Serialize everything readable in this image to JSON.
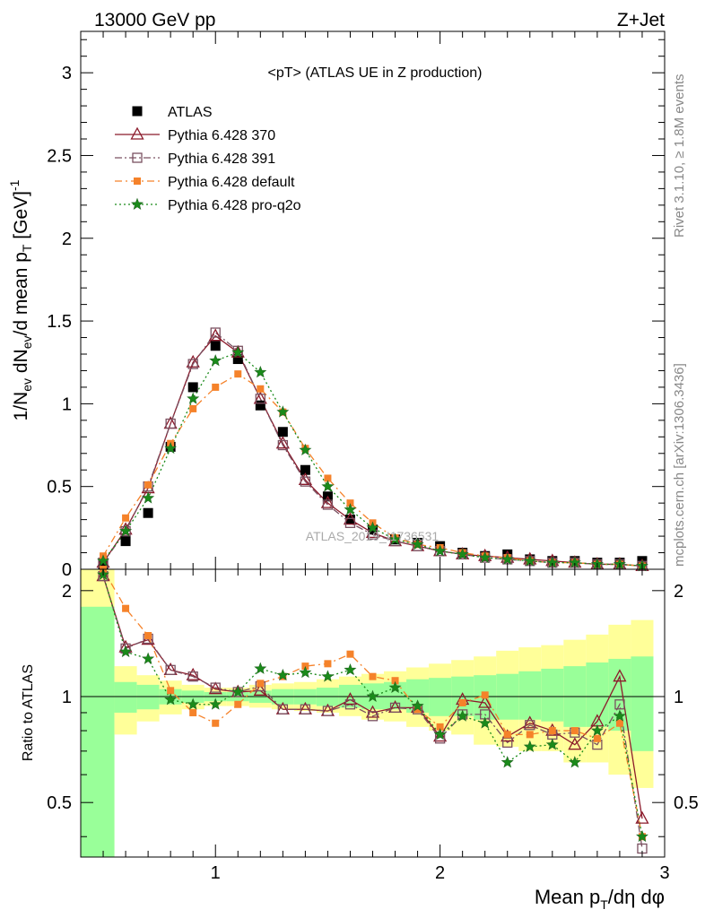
{
  "header": {
    "energy_label": "13000 GeV pp",
    "process_label": "Z+Jet"
  },
  "side_labels": {
    "rivet": "Rivet 3.1.10, ≥ 1.8M events",
    "mcplots": "mcplots.cern.ch [arXiv:1306.3436]"
  },
  "watermark": "ATLAS_2019_I1736531",
  "colors": {
    "data": "#000000",
    "p370": "#8b1a2b",
    "p391": "#7a5060",
    "pdefault": "#f5822a",
    "pq2o": "#1a8a1a",
    "band_inner": "#99ff99",
    "band_outer": "#ffff99"
  },
  "chart_data": [
    {
      "type": "scatter",
      "title": "<pT> (ATLAS UE in Z production)",
      "ylabel": "1/N_ev dN_ev/d mean p_T [GeV]^-1",
      "xlabel": "",
      "xlim": [
        0.4,
        3.0
      ],
      "ylim": [
        0,
        3.25
      ],
      "yticks": [
        0,
        0.5,
        1,
        1.5,
        2,
        2.5,
        3
      ],
      "legend_position": "top-left",
      "legend": [
        "ATLAS",
        "Pythia 6.428 370",
        "Pythia 6.428 391",
        "Pythia 6.428 default",
        "Pythia 6.428 pro-q2o"
      ],
      "x": [
        0.5,
        0.6,
        0.7,
        0.8,
        0.9,
        1.0,
        1.1,
        1.2,
        1.3,
        1.4,
        1.5,
        1.6,
        1.7,
        1.8,
        1.9,
        2.0,
        2.1,
        2.2,
        2.3,
        2.4,
        2.5,
        2.6,
        2.7,
        2.8,
        2.9
      ],
      "series": [
        {
          "name": "ATLAS",
          "values": [
            0.02,
            0.17,
            0.34,
            0.74,
            1.1,
            1.35,
            1.27,
            0.99,
            0.83,
            0.6,
            0.44,
            0.3,
            0.24,
            0.18,
            0.16,
            0.14,
            0.1,
            0.08,
            0.09,
            0.06,
            0.05,
            0.05,
            0.04,
            0.04,
            0.05
          ]
        },
        {
          "name": "Pythia 6.428 370",
          "values": [
            0.04,
            0.24,
            0.49,
            0.88,
            1.25,
            1.41,
            1.31,
            1.03,
            0.76,
            0.54,
            0.4,
            0.3,
            0.22,
            0.17,
            0.14,
            0.11,
            0.09,
            0.08,
            0.07,
            0.06,
            0.05,
            0.04,
            0.03,
            0.03,
            0.02
          ]
        },
        {
          "name": "Pythia 6.428 391",
          "values": [
            0.04,
            0.23,
            0.5,
            0.88,
            1.24,
            1.43,
            1.32,
            1.03,
            0.75,
            0.53,
            0.39,
            0.28,
            0.21,
            0.17,
            0.14,
            0.11,
            0.09,
            0.07,
            0.06,
            0.05,
            0.04,
            0.04,
            0.03,
            0.03,
            0.02
          ]
        },
        {
          "name": "Pythia 6.428 default",
          "values": [
            0.08,
            0.31,
            0.51,
            0.76,
            0.97,
            1.1,
            1.18,
            1.09,
            0.95,
            0.73,
            0.55,
            0.4,
            0.28,
            0.19,
            0.15,
            0.13,
            0.1,
            0.08,
            0.07,
            0.05,
            0.04,
            0.04,
            0.03,
            0.03,
            0.02
          ]
        },
        {
          "name": "Pythia 6.428 pro-q2o",
          "values": [
            0.05,
            0.23,
            0.43,
            0.73,
            1.03,
            1.26,
            1.31,
            1.19,
            0.95,
            0.72,
            0.5,
            0.36,
            0.25,
            0.18,
            0.15,
            0.11,
            0.09,
            0.07,
            0.06,
            0.05,
            0.04,
            0.04,
            0.03,
            0.03,
            0.02
          ]
        }
      ]
    },
    {
      "type": "line",
      "title": "",
      "ylabel": "Ratio to ATLAS",
      "xlabel": "Mean p_T/dη dφ",
      "xlim": [
        0.4,
        3.0
      ],
      "ylim": [
        0.35,
        2.3
      ],
      "yticks": [
        0.5,
        1,
        2
      ],
      "xticks": [
        1,
        2,
        3
      ],
      "reference_line": 1,
      "band_edges": [
        0.4,
        0.55,
        0.65,
        0.75,
        0.85,
        0.95,
        1.05,
        1.15,
        1.25,
        1.35,
        1.45,
        1.55,
        1.65,
        1.75,
        1.85,
        1.95,
        2.05,
        2.15,
        2.25,
        2.35,
        2.45,
        2.55,
        2.65,
        2.75,
        2.85,
        2.95
      ],
      "band_inner": [
        [
          0.3,
          1.8
        ],
        [
          0.9,
          1.1
        ],
        [
          0.92,
          1.08
        ],
        [
          0.95,
          1.05
        ],
        [
          0.96,
          1.04
        ],
        [
          0.97,
          1.03
        ],
        [
          0.97,
          1.03
        ],
        [
          0.96,
          1.04
        ],
        [
          0.95,
          1.05
        ],
        [
          0.95,
          1.05
        ],
        [
          0.94,
          1.06
        ],
        [
          0.93,
          1.08
        ],
        [
          0.92,
          1.09
        ],
        [
          0.92,
          1.1
        ],
        [
          0.9,
          1.12
        ],
        [
          0.88,
          1.13
        ],
        [
          0.88,
          1.14
        ],
        [
          0.86,
          1.15
        ],
        [
          0.86,
          1.16
        ],
        [
          0.86,
          1.18
        ],
        [
          0.85,
          1.2
        ],
        [
          0.82,
          1.22
        ],
        [
          0.82,
          1.25
        ],
        [
          0.8,
          1.28
        ],
        [
          0.7,
          1.3
        ]
      ],
      "band_outer": [
        [
          0.3,
          2.3
        ],
        [
          0.78,
          1.22
        ],
        [
          0.85,
          1.15
        ],
        [
          0.89,
          1.11
        ],
        [
          0.92,
          1.08
        ],
        [
          0.94,
          1.06
        ],
        [
          0.94,
          1.06
        ],
        [
          0.93,
          1.08
        ],
        [
          0.92,
          1.09
        ],
        [
          0.91,
          1.1
        ],
        [
          0.9,
          1.12
        ],
        [
          0.88,
          1.14
        ],
        [
          0.86,
          1.16
        ],
        [
          0.85,
          1.18
        ],
        [
          0.82,
          1.21
        ],
        [
          0.8,
          1.24
        ],
        [
          0.78,
          1.27
        ],
        [
          0.73,
          1.3
        ],
        [
          0.72,
          1.35
        ],
        [
          0.7,
          1.38
        ],
        [
          0.7,
          1.4
        ],
        [
          0.65,
          1.45
        ],
        [
          0.65,
          1.5
        ],
        [
          0.6,
          1.6
        ],
        [
          0.55,
          1.65
        ]
      ],
      "x": [
        0.5,
        0.6,
        0.7,
        0.8,
        0.9,
        1.0,
        1.1,
        1.2,
        1.3,
        1.4,
        1.5,
        1.6,
        1.7,
        1.8,
        1.9,
        2.0,
        2.1,
        2.2,
        2.3,
        2.4,
        2.5,
        2.6,
        2.7,
        2.8,
        2.9
      ],
      "series": [
        {
          "name": "Pythia 6.428 370",
          "values": [
            2.2,
            1.38,
            1.45,
            1.19,
            1.15,
            1.05,
            1.03,
            1.04,
            0.92,
            0.92,
            0.91,
            0.98,
            0.9,
            0.93,
            0.93,
            0.77,
            0.98,
            0.96,
            0.77,
            0.84,
            0.8,
            0.73,
            0.85,
            1.14,
            0.45
          ]
        },
        {
          "name": "Pythia 6.428 391",
          "values": [
            2.2,
            1.37,
            1.46,
            1.19,
            1.14,
            1.06,
            1.03,
            1.07,
            0.92,
            0.92,
            0.91,
            0.95,
            0.88,
            0.93,
            0.92,
            0.76,
            0.89,
            0.89,
            0.74,
            0.83,
            0.78,
            0.79,
            0.73,
            0.95,
            0.37
          ]
        },
        {
          "name": "Pythia 6.428 default",
          "values": [
            2.3,
            1.78,
            1.49,
            1.04,
            0.9,
            0.84,
            0.95,
            1.09,
            1.14,
            1.22,
            1.24,
            1.32,
            1.14,
            1.11,
            0.92,
            0.82,
            0.96,
            1.01,
            0.78,
            0.78,
            0.8,
            0.8,
            0.76,
            0.84,
            0.4
          ]
        },
        {
          "name": "Pythia 6.428 pro-q2o",
          "values": [
            2.22,
            1.34,
            1.28,
            0.98,
            0.95,
            0.95,
            1.03,
            1.2,
            1.15,
            1.17,
            1.14,
            1.19,
            1.0,
            1.06,
            0.94,
            0.78,
            0.88,
            0.84,
            0.65,
            0.72,
            0.73,
            0.65,
            0.8,
            0.88,
            0.4
          ]
        }
      ]
    }
  ]
}
